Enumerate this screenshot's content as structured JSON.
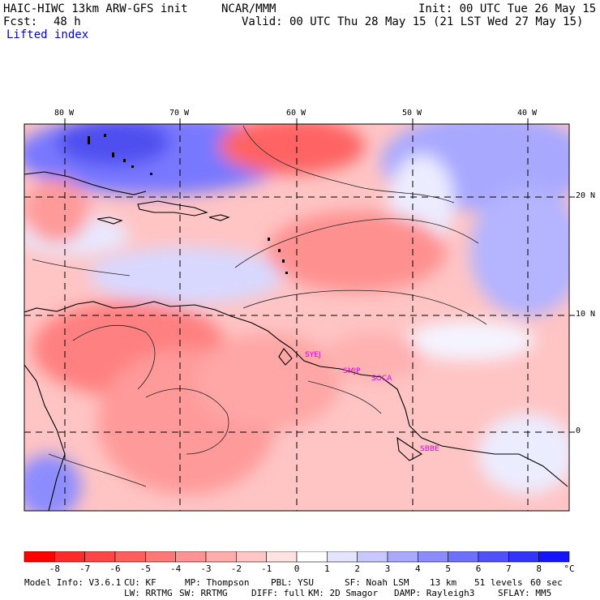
{
  "header": {
    "model": "HAIC-HIWC 13km ARW-GFS init",
    "org": "NCAR/MMM",
    "init": "Init: 00 UTC Tue 26 May 15",
    "fcst_label": "Fcst:",
    "fcst_value": "48 h",
    "valid": "Valid: 00 UTC Thu 28 May 15 (21 LST Wed 27 May 15)",
    "field": "Lifted index"
  },
  "map": {
    "lon_labels": [
      "80 W",
      "70 W",
      "60 W",
      "50 W",
      "40 W"
    ],
    "lat_labels": [
      "20 N",
      "10 N",
      "0"
    ],
    "stations": [
      "SYEJ",
      "SMJP",
      "SOCA",
      "SBBE"
    ]
  },
  "colorbar": {
    "labels": [
      "-8",
      "-7",
      "-6",
      "-5",
      "-4",
      "-3",
      "-2",
      "-1",
      "0",
      "1",
      "2",
      "3",
      "4",
      "5",
      "6",
      "7",
      "8"
    ],
    "unit": "°C",
    "colors": [
      "#ff0000",
      "#ff2a2a",
      "#ff4545",
      "#ff5e5e",
      "#ff7878",
      "#ff9292",
      "#ffacac",
      "#ffc6c6",
      "#ffe2e2",
      "#ffffff",
      "#e4e4ff",
      "#c8c8ff",
      "#a8a8ff",
      "#8c8cff",
      "#6e6eff",
      "#5050ff",
      "#3434ff",
      "#1414ff"
    ]
  },
  "footer": {
    "line1": [
      "Model Info: V3.6.1",
      "CU: KF",
      "MP: Thompson",
      "PBL: YSU",
      "SF: Noah LSM",
      "13 km",
      "51 levels",
      "60 sec"
    ],
    "line2": [
      "LW: RRTMG",
      "SW: RRTMG",
      "DIFF: full",
      "KM: 2D Smagor",
      "DAMP: Rayleigh3",
      "SFLAY: MM5"
    ]
  }
}
